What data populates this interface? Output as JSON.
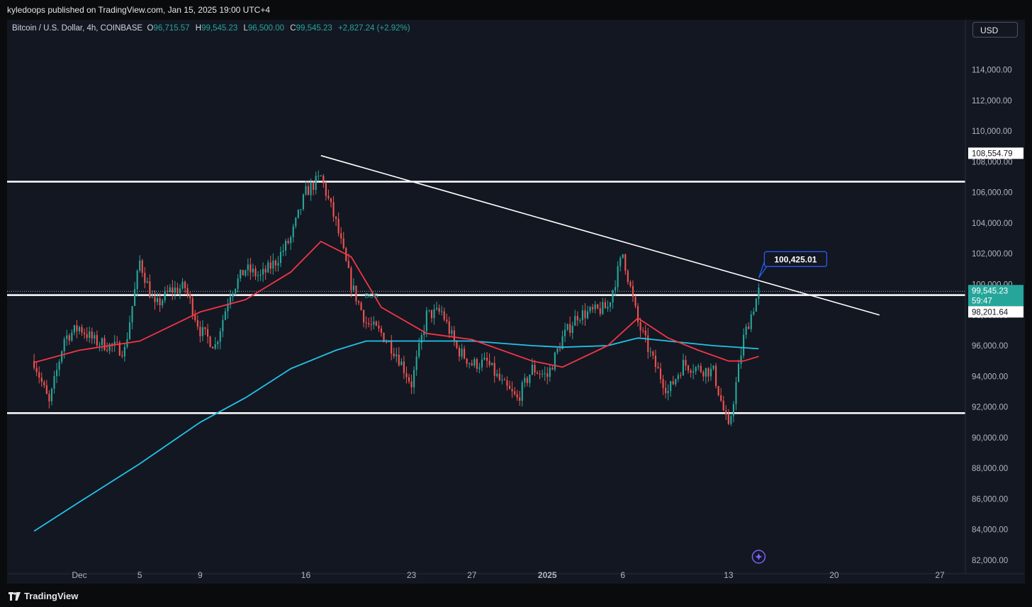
{
  "header": {
    "published": "kyledoops published on TradingView.com, Jan 15, 2025 19:00 UTC+4"
  },
  "legend": {
    "symbol": "Bitcoin / U.S. Dollar, 4h, COINBASE",
    "open_label": "O",
    "open": "96,715.57",
    "high_label": "H",
    "high": "99,545.23",
    "low_label": "L",
    "low": "96,500.00",
    "close_label": "C",
    "close": "99,545.23",
    "change": "+2,827.24 (+2.92%)"
  },
  "currency_button": "USD",
  "footer": {
    "brand": "TradingView",
    "logo_icon": "tradingview-logo-icon"
  },
  "colors": {
    "background": "#131722",
    "bull": "#26a69a",
    "bear": "#ef5350",
    "ma_fast": "#f23645",
    "ma_slow": "#22c3e6",
    "level_line": "#ffffff",
    "callout": "#2962ff"
  },
  "chart_data": {
    "type": "candlestick",
    "title": "",
    "xlabel": "",
    "ylabel": "",
    "ylim": [
      81000,
      117000
    ],
    "x_ticks": [
      "Dec",
      "5",
      "9",
      "16",
      "23",
      "27",
      "2025",
      "6",
      "13",
      "20",
      "27"
    ],
    "x_tick_dates": [
      "2024-12-01",
      "2024-12-05",
      "2024-12-09",
      "2024-12-16",
      "2024-12-23",
      "2024-12-27",
      "2025-01-01",
      "2025-01-06",
      "2025-01-13",
      "2025-01-20",
      "2025-01-27"
    ],
    "y_ticks": [
      82000,
      84000,
      86000,
      88000,
      90000,
      92000,
      94000,
      96000,
      98000,
      100000,
      102000,
      104000,
      106000,
      108000,
      110000,
      112000,
      114000
    ],
    "price_labels": {
      "upper_level": "108,554.79",
      "current_price": "99,545.23",
      "countdown": "59:47",
      "lower_label": "98,201.64"
    },
    "horizontal_levels": [
      106700,
      99300,
      91600
    ],
    "dotted_level": 99545.23,
    "trendline": {
      "start": [
        "2024-12-17",
        108400
      ],
      "end": [
        "2025-01-23",
        98000
      ]
    },
    "callout": {
      "text": "100,425.01",
      "at": [
        "2025-01-15",
        100425.01
      ]
    },
    "annotation": {
      "text": "BOS",
      "at": [
        "2024-12-20",
        99300
      ]
    },
    "key_points": [
      [
        "2024-11-28",
        95000
      ],
      [
        "2024-11-29",
        92200
      ],
      [
        "2024-11-30",
        96500
      ],
      [
        "2024-12-01",
        97200
      ],
      [
        "2024-12-02",
        96300
      ],
      [
        "2024-12-03",
        96000
      ],
      [
        "2024-12-04",
        95700
      ],
      [
        "2024-12-05",
        101500
      ],
      [
        "2024-12-06",
        98500
      ],
      [
        "2024-12-07",
        99600
      ],
      [
        "2024-12-08",
        99800
      ],
      [
        "2024-12-09",
        97000
      ],
      [
        "2024-12-10",
        96000
      ],
      [
        "2024-12-11",
        99500
      ],
      [
        "2024-12-12",
        101000
      ],
      [
        "2024-12-13",
        100500
      ],
      [
        "2024-12-14",
        101500
      ],
      [
        "2024-12-15",
        103000
      ],
      [
        "2024-12-16",
        106000
      ],
      [
        "2024-12-17",
        107000
      ],
      [
        "2024-12-18",
        104000
      ],
      [
        "2024-12-19",
        100000
      ],
      [
        "2024-12-20",
        97500
      ],
      [
        "2024-12-21",
        96800
      ],
      [
        "2024-12-22",
        95500
      ],
      [
        "2024-12-23",
        93500
      ],
      [
        "2024-12-24",
        98000
      ],
      [
        "2024-12-25",
        98200
      ],
      [
        "2024-12-26",
        95800
      ],
      [
        "2024-12-27",
        94800
      ],
      [
        "2024-12-28",
        94900
      ],
      [
        "2024-12-29",
        93500
      ],
      [
        "2024-12-30",
        92500
      ],
      [
        "2024-12-31",
        94500
      ],
      [
        "2025-01-01",
        94000
      ],
      [
        "2025-01-02",
        96500
      ],
      [
        "2025-01-03",
        98000
      ],
      [
        "2025-01-04",
        98200
      ],
      [
        "2025-01-05",
        98500
      ],
      [
        "2025-01-06",
        102000
      ],
      [
        "2025-01-07",
        97500
      ],
      [
        "2025-01-08",
        95000
      ],
      [
        "2025-01-09",
        93000
      ],
      [
        "2025-01-10",
        94800
      ],
      [
        "2025-01-11",
        94500
      ],
      [
        "2025-01-12",
        94300
      ],
      [
        "2025-01-13",
        90500
      ],
      [
        "2025-01-14",
        96500
      ],
      [
        "2025-01-15",
        99545
      ]
    ],
    "ma_fast_points": [
      [
        "2024-11-28",
        94900
      ],
      [
        "2024-12-01",
        95700
      ],
      [
        "2024-12-05",
        96300
      ],
      [
        "2024-12-09",
        98200
      ],
      [
        "2024-12-12",
        99000
      ],
      [
        "2024-12-15",
        100800
      ],
      [
        "2024-12-17",
        102800
      ],
      [
        "2024-12-19",
        101800
      ],
      [
        "2024-12-21",
        98500
      ],
      [
        "2024-12-24",
        96800
      ],
      [
        "2024-12-27",
        96400
      ],
      [
        "2024-12-31",
        95000
      ],
      [
        "2025-01-02",
        94600
      ],
      [
        "2025-01-05",
        96000
      ],
      [
        "2025-01-07",
        97800
      ],
      [
        "2025-01-09",
        96500
      ],
      [
        "2025-01-11",
        95700
      ],
      [
        "2025-01-13",
        95000
      ],
      [
        "2025-01-14",
        95000
      ],
      [
        "2025-01-15",
        95300
      ]
    ],
    "ma_slow_points": [
      [
        "2024-11-28",
        83900
      ],
      [
        "2024-12-01",
        85800
      ],
      [
        "2024-12-05",
        88300
      ],
      [
        "2024-12-09",
        91000
      ],
      [
        "2024-12-12",
        92600
      ],
      [
        "2024-12-15",
        94500
      ],
      [
        "2024-12-18",
        95700
      ],
      [
        "2024-12-20",
        96300
      ],
      [
        "2024-12-23",
        96300
      ],
      [
        "2024-12-27",
        96300
      ],
      [
        "2024-12-31",
        96000
      ],
      [
        "2025-01-02",
        95900
      ],
      [
        "2025-01-05",
        96000
      ],
      [
        "2025-01-07",
        96500
      ],
      [
        "2025-01-09",
        96300
      ],
      [
        "2025-01-12",
        96000
      ],
      [
        "2025-01-15",
        95800
      ]
    ]
  }
}
